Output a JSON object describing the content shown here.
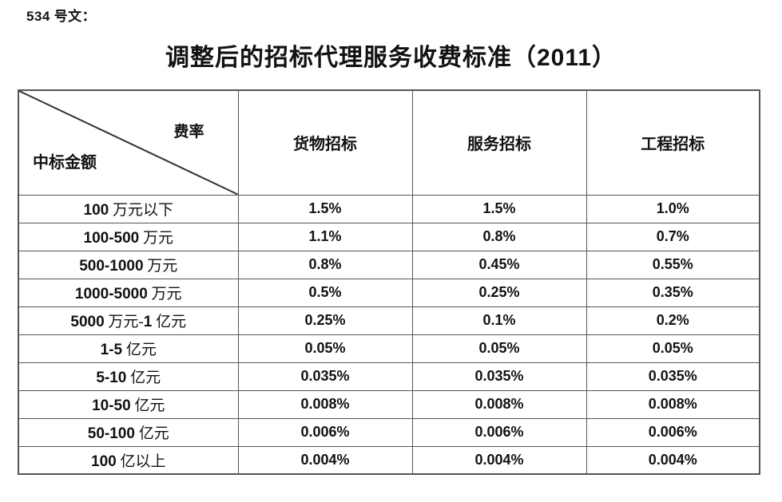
{
  "page": {
    "doc_number": "534 号文：",
    "title": "调整后的招标代理服务收费标准（2011）"
  },
  "colors": {
    "background": "#ffffff",
    "text": "#121212",
    "table_border": "#555555"
  },
  "table": {
    "corner": {
      "axis_col": "费率",
      "axis_row": "中标金额"
    },
    "columns": [
      "货物招标",
      "服务招标",
      "工程招标"
    ],
    "rows": [
      {
        "label": "100 万元以下",
        "values": [
          "1.5%",
          "1.5%",
          "1.0%"
        ]
      },
      {
        "label": "100-500 万元",
        "values": [
          "1.1%",
          "0.8%",
          "0.7%"
        ]
      },
      {
        "label": "500-1000 万元",
        "values": [
          "0.8%",
          "0.45%",
          "0.55%"
        ]
      },
      {
        "label": "1000-5000 万元",
        "values": [
          "0.5%",
          "0.25%",
          "0.35%"
        ]
      },
      {
        "label": "5000 万元-1 亿元",
        "values": [
          "0.25%",
          "0.1%",
          "0.2%"
        ]
      },
      {
        "label": "1-5 亿元",
        "values": [
          "0.05%",
          "0.05%",
          "0.05%"
        ]
      },
      {
        "label": "5-10 亿元",
        "values": [
          "0.035%",
          "0.035%",
          "0.035%"
        ]
      },
      {
        "label": "10-50 亿元",
        "values": [
          "0.008%",
          "0.008%",
          "0.008%"
        ]
      },
      {
        "label": "50-100 亿元",
        "values": [
          "0.006%",
          "0.006%",
          "0.006%"
        ]
      },
      {
        "label": "100 亿以上",
        "values": [
          "0.004%",
          "0.004%",
          "0.004%"
        ]
      }
    ]
  }
}
